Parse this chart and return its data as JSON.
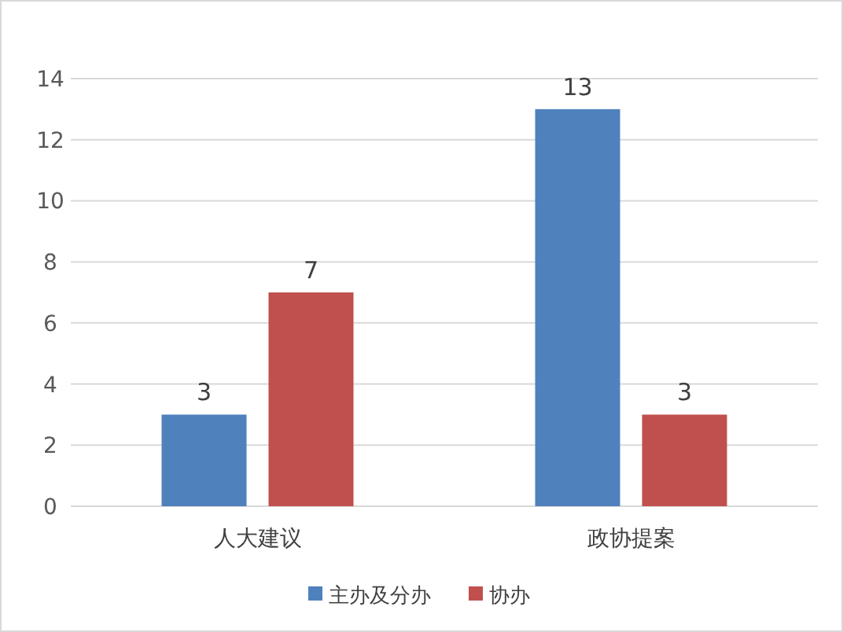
{
  "chart_data": {
    "type": "bar",
    "categories": [
      "人大建议",
      "政协提案"
    ],
    "series": [
      {
        "name": "主办及分办",
        "color": "#4f81bd",
        "values": [
          3,
          13
        ]
      },
      {
        "name": "协办",
        "color": "#c0504d",
        "values": [
          7,
          3
        ]
      }
    ],
    "ylim": [
      0,
      14
    ],
    "yticks": [
      0,
      2,
      4,
      6,
      8,
      10,
      12,
      14
    ],
    "grid": "y",
    "data_labels": true,
    "legend": "bottom"
  }
}
